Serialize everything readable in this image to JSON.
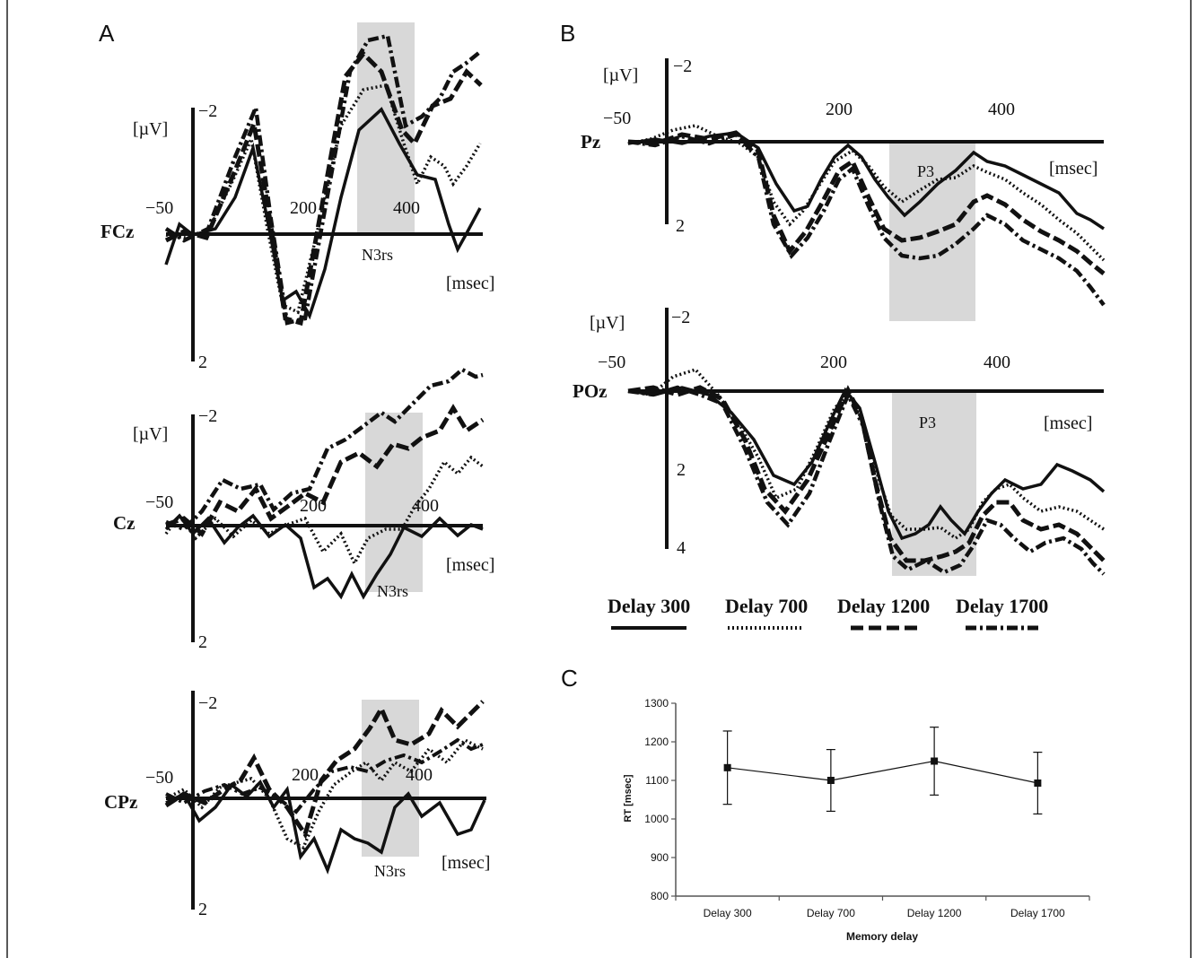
{
  "panel_letters": {
    "a": "A",
    "b": "B",
    "c": "C"
  },
  "units": {
    "uv": "[µV]",
    "msec": "[msec]"
  },
  "ticks": {
    "minus2": "−2",
    "pos2": "2",
    "pos4": "4",
    "minus50": "−50",
    "t200": "200",
    "t400": "400"
  },
  "channels": {
    "fcz": "FCz",
    "cz": "Cz",
    "cpz": "CPz",
    "pz": "Pz",
    "poz": "POz"
  },
  "bands": {
    "n3rs": "N3rs",
    "p3": "P3"
  },
  "legend": [
    "Delay 300",
    "Delay 700",
    "Delay 1200",
    "Delay 1700"
  ],
  "chart_data": [
    {
      "type": "line",
      "panel": "A",
      "channels": [
        "FCz",
        "Cz",
        "CPz"
      ],
      "series": [
        {
          "name": "Delay 300",
          "style": "solid"
        },
        {
          "name": "Delay 700",
          "style": "dotted"
        },
        {
          "name": "Delay 1200",
          "style": "dashed"
        },
        {
          "name": "Delay 1700",
          "style": "dash-dot"
        }
      ],
      "xlabel": "[msec]",
      "ylabel": "[µV]",
      "x_ticks": [
        -50,
        200,
        400
      ],
      "y_ticks": [
        -2,
        2
      ],
      "highlight_window_label": "N3rs",
      "note": "negative up"
    },
    {
      "type": "line",
      "panel": "B",
      "channels": [
        "Pz",
        "POz"
      ],
      "series": [
        {
          "name": "Delay 300",
          "style": "solid"
        },
        {
          "name": "Delay 700",
          "style": "dotted"
        },
        {
          "name": "Delay 1200",
          "style": "dashed"
        },
        {
          "name": "Delay 1700",
          "style": "dash-dot"
        }
      ],
      "xlabel": "[msec]",
      "ylabel": "[µV]",
      "x_ticks": [
        -50,
        200,
        400
      ],
      "y_ticks_pz": [
        -2,
        2
      ],
      "y_ticks_poz": [
        -2,
        2,
        4
      ],
      "highlight_window_label": "P3"
    },
    {
      "type": "line",
      "panel": "C",
      "xlabel": "Memory  delay",
      "ylabel": "RT [msec]",
      "categories": [
        "Delay 300",
        "Delay 700",
        "Delay 1200",
        "Delay 1700"
      ],
      "values": [
        1133,
        1100,
        1150,
        1093
      ],
      "errors": [
        95,
        80,
        88,
        80
      ],
      "ylim": [
        800,
        1300
      ],
      "yticks": [
        800,
        900,
        1000,
        1100,
        1200,
        1300
      ],
      "markers": "square",
      "color": "#111111"
    }
  ]
}
